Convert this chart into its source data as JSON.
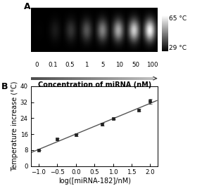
{
  "panel_a_label": "A",
  "panel_b_label": "B",
  "concentrations": [
    "0",
    "0.1",
    "0.5",
    "1",
    "5",
    "10",
    "50",
    "100"
  ],
  "conc_xlabel": "Concentration of miRNA (nM)",
  "colorbar_high": "65 °C",
  "colorbar_low": "29 °C",
  "scatter_x": [
    -1.0,
    -0.5,
    0.0,
    0.7,
    1.0,
    1.7,
    2.0
  ],
  "scatter_y": [
    7.8,
    13.5,
    15.5,
    21.0,
    23.8,
    28.0,
    32.5
  ],
  "scatter_yerr": [
    0.0,
    0.5,
    0.6,
    0.8,
    0.5,
    0.5,
    1.2
  ],
  "xlabel_b": "log([miRNA-182]/nM)",
  "ylabel_b": "Temperature increase (°C)",
  "xlim": [
    -1.2,
    2.2
  ],
  "ylim": [
    0,
    40
  ],
  "xticks": [
    -1.0,
    -0.5,
    0.0,
    0.5,
    1.0,
    1.5,
    2.0
  ],
  "yticks": [
    0,
    8,
    16,
    24,
    32,
    40
  ],
  "background_color": "#ffffff",
  "line_color": "#555555",
  "marker_color": "#222222",
  "strip_brightnesses": [
    0.01,
    0.1,
    0.2,
    0.33,
    0.5,
    0.65,
    0.8,
    0.95
  ],
  "spot_sigma": 6.5
}
